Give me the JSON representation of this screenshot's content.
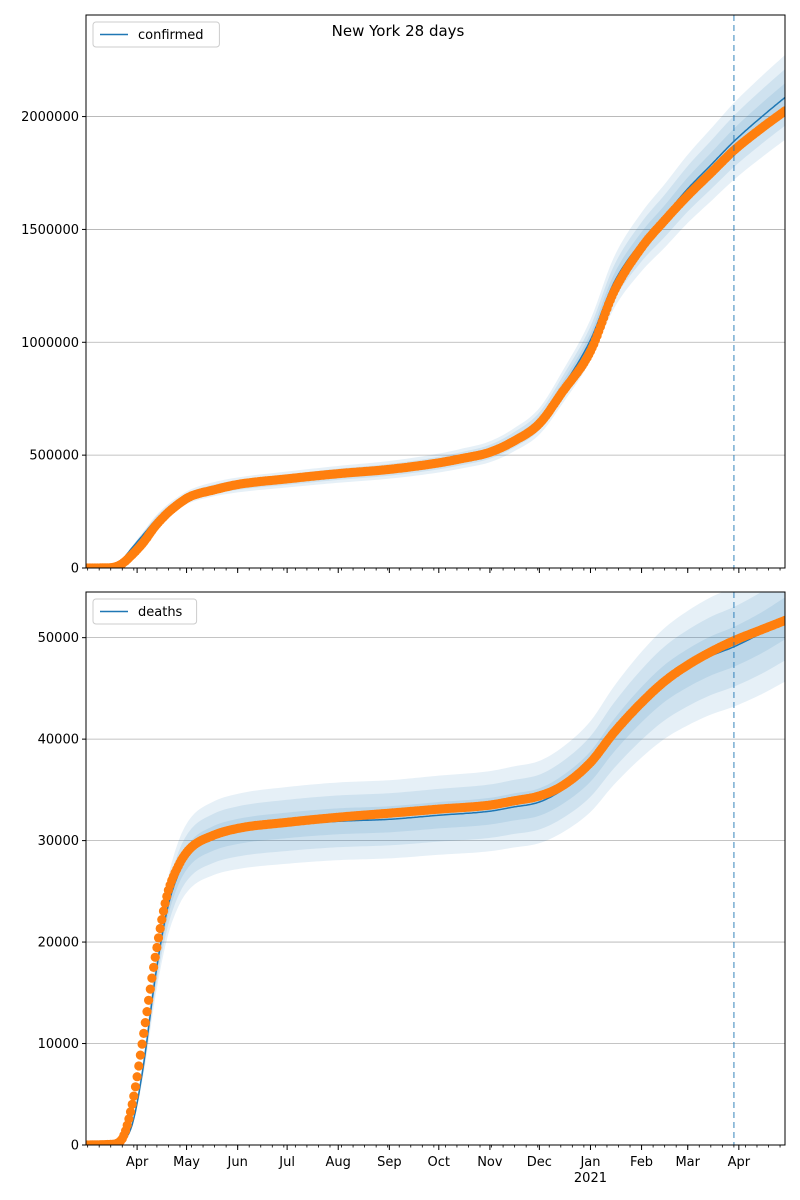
{
  "figure": {
    "title": "New York 28 days"
  },
  "chart_data": [
    {
      "type": "line",
      "series_name": "confirmed",
      "legend_label": "confirmed",
      "legend_position": "top-left",
      "grid": "horizontal",
      "ylim": [
        0,
        2450000
      ],
      "yticks": [
        0,
        500000,
        1000000,
        1500000,
        2000000
      ],
      "ytick_labels": [
        "0",
        "500000",
        "1000000",
        "1500000",
        "2000000"
      ],
      "forecast_start": "2021-03-29",
      "model_median": [
        [
          "2020-03-01",
          0
        ],
        [
          "2020-03-15",
          2000
        ],
        [
          "2020-03-22",
          30000
        ],
        [
          "2020-03-29",
          90000
        ],
        [
          "2020-04-05",
          150000
        ],
        [
          "2020-04-12",
          210000
        ],
        [
          "2020-04-19",
          255000
        ],
        [
          "2020-04-26",
          290000
        ],
        [
          "2020-05-03",
          318000
        ],
        [
          "2020-05-17",
          348000
        ],
        [
          "2020-06-01",
          368000
        ],
        [
          "2020-07-01",
          392000
        ],
        [
          "2020-08-01",
          415000
        ],
        [
          "2020-09-01",
          435000
        ],
        [
          "2020-10-01",
          465000
        ],
        [
          "2020-10-15",
          485000
        ],
        [
          "2020-11-01",
          515000
        ],
        [
          "2020-11-15",
          565000
        ],
        [
          "2020-12-01",
          650000
        ],
        [
          "2020-12-15",
          800000
        ],
        [
          "2021-01-01",
          1010000
        ],
        [
          "2021-01-15",
          1260000
        ],
        [
          "2021-02-01",
          1445000
        ],
        [
          "2021-02-15",
          1560000
        ],
        [
          "2021-03-01",
          1680000
        ],
        [
          "2021-03-15",
          1785000
        ],
        [
          "2021-03-29",
          1890000
        ],
        [
          "2021-04-15",
          2000000
        ],
        [
          "2021-04-29",
          2085000
        ]
      ],
      "observed": [
        [
          "2020-03-01",
          0
        ],
        [
          "2020-03-15",
          1000
        ],
        [
          "2020-03-22",
          15000
        ],
        [
          "2020-03-29",
          59000
        ],
        [
          "2020-04-05",
          115000
        ],
        [
          "2020-04-12",
          185000
        ],
        [
          "2020-04-19",
          240000
        ],
        [
          "2020-04-26",
          283000
        ],
        [
          "2020-05-03",
          316000
        ],
        [
          "2020-05-17",
          345000
        ],
        [
          "2020-06-01",
          370000
        ],
        [
          "2020-07-01",
          395000
        ],
        [
          "2020-08-01",
          418000
        ],
        [
          "2020-09-01",
          437000
        ],
        [
          "2020-10-01",
          466000
        ],
        [
          "2020-10-15",
          485000
        ],
        [
          "2020-11-01",
          513000
        ],
        [
          "2020-11-15",
          560000
        ],
        [
          "2020-12-01",
          640000
        ],
        [
          "2020-12-15",
          780000
        ],
        [
          "2021-01-01",
          960000
        ],
        [
          "2021-01-15",
          1220000
        ],
        [
          "2021-02-01",
          1420000
        ],
        [
          "2021-02-15",
          1540000
        ],
        [
          "2021-03-01",
          1650000
        ],
        [
          "2021-03-15",
          1750000
        ],
        [
          "2021-03-29",
          1850000
        ],
        [
          "2021-04-15",
          1950000
        ],
        [
          "2021-04-29",
          2025000
        ]
      ],
      "band_halfwidth_ratio": [
        0.03,
        0.06,
        0.09
      ]
    },
    {
      "type": "line",
      "series_name": "deaths",
      "legend_label": "deaths",
      "legend_position": "top-left",
      "grid": "horizontal",
      "ylim": [
        0,
        54500
      ],
      "yticks": [
        0,
        10000,
        20000,
        30000,
        40000,
        50000
      ],
      "ytick_labels": [
        "0",
        "10000",
        "20000",
        "30000",
        "40000",
        "50000"
      ],
      "forecast_start": "2021-03-29",
      "model_median": [
        [
          "2020-03-01",
          0
        ],
        [
          "2020-03-15",
          50
        ],
        [
          "2020-03-22",
          300
        ],
        [
          "2020-03-29",
          2000
        ],
        [
          "2020-04-05",
          8000
        ],
        [
          "2020-04-12",
          16500
        ],
        [
          "2020-04-19",
          23000
        ],
        [
          "2020-04-26",
          26700
        ],
        [
          "2020-05-03",
          28700
        ],
        [
          "2020-05-17",
          30200
        ],
        [
          "2020-06-01",
          30900
        ],
        [
          "2020-07-01",
          31500
        ],
        [
          "2020-08-01",
          31900
        ],
        [
          "2020-09-01",
          32100
        ],
        [
          "2020-10-01",
          32500
        ],
        [
          "2020-11-01",
          32900
        ],
        [
          "2020-11-15",
          33300
        ],
        [
          "2020-12-01",
          33800
        ],
        [
          "2020-12-15",
          35000
        ],
        [
          "2021-01-01",
          37300
        ],
        [
          "2021-01-15",
          40300
        ],
        [
          "2021-02-01",
          43400
        ],
        [
          "2021-02-15",
          45500
        ],
        [
          "2021-03-01",
          47000
        ],
        [
          "2021-03-15",
          48200
        ],
        [
          "2021-03-29",
          49100
        ],
        [
          "2021-04-15",
          50500
        ],
        [
          "2021-04-29",
          51900
        ]
      ],
      "observed": [
        [
          "2020-03-01",
          0
        ],
        [
          "2020-03-15",
          50
        ],
        [
          "2020-03-22",
          400
        ],
        [
          "2020-03-29",
          4000
        ],
        [
          "2020-04-05",
          11000
        ],
        [
          "2020-04-12",
          18500
        ],
        [
          "2020-04-19",
          24500
        ],
        [
          "2020-04-26",
          27500
        ],
        [
          "2020-05-03",
          29200
        ],
        [
          "2020-05-17",
          30500
        ],
        [
          "2020-06-01",
          31200
        ],
        [
          "2020-07-01",
          31800
        ],
        [
          "2020-08-01",
          32300
        ],
        [
          "2020-09-01",
          32700
        ],
        [
          "2020-10-01",
          33100
        ],
        [
          "2020-11-01",
          33500
        ],
        [
          "2020-11-15",
          33900
        ],
        [
          "2020-12-01",
          34400
        ],
        [
          "2020-12-15",
          35400
        ],
        [
          "2021-01-01",
          37700
        ],
        [
          "2021-01-15",
          40600
        ],
        [
          "2021-02-01",
          43600
        ],
        [
          "2021-02-15",
          45700
        ],
        [
          "2021-03-01",
          47300
        ],
        [
          "2021-03-15",
          48600
        ],
        [
          "2021-03-29",
          49700
        ],
        [
          "2021-04-15",
          50800
        ],
        [
          "2021-04-29",
          51700
        ]
      ],
      "band_halfwidth_ratio": [
        0.04,
        0.08,
        0.12
      ]
    }
  ],
  "x_axis": {
    "start": "2020-03-01",
    "end": "2021-04-29",
    "month_ticks": [
      {
        "date": "2020-04-01",
        "label": "Apr"
      },
      {
        "date": "2020-05-01",
        "label": "May"
      },
      {
        "date": "2020-06-01",
        "label": "Jun"
      },
      {
        "date": "2020-07-01",
        "label": "Jul"
      },
      {
        "date": "2020-08-01",
        "label": "Aug"
      },
      {
        "date": "2020-09-01",
        "label": "Sep"
      },
      {
        "date": "2020-10-01",
        "label": "Oct"
      },
      {
        "date": "2020-11-01",
        "label": "Nov"
      },
      {
        "date": "2020-12-01",
        "label": "Dec"
      },
      {
        "date": "2021-01-01",
        "label": "Jan"
      },
      {
        "date": "2021-02-01",
        "label": "Feb"
      },
      {
        "date": "2021-03-01",
        "label": "Mar"
      },
      {
        "date": "2021-04-01",
        "label": "Apr"
      }
    ],
    "year_label": {
      "date": "2021-01-01",
      "label": "2021"
    }
  },
  "colors": {
    "line": "#1f77b4",
    "observed": "#ff7f0e",
    "band": "#1f77b4",
    "grid": "#b0b0b0",
    "forecast_line": "#1f77b4"
  }
}
